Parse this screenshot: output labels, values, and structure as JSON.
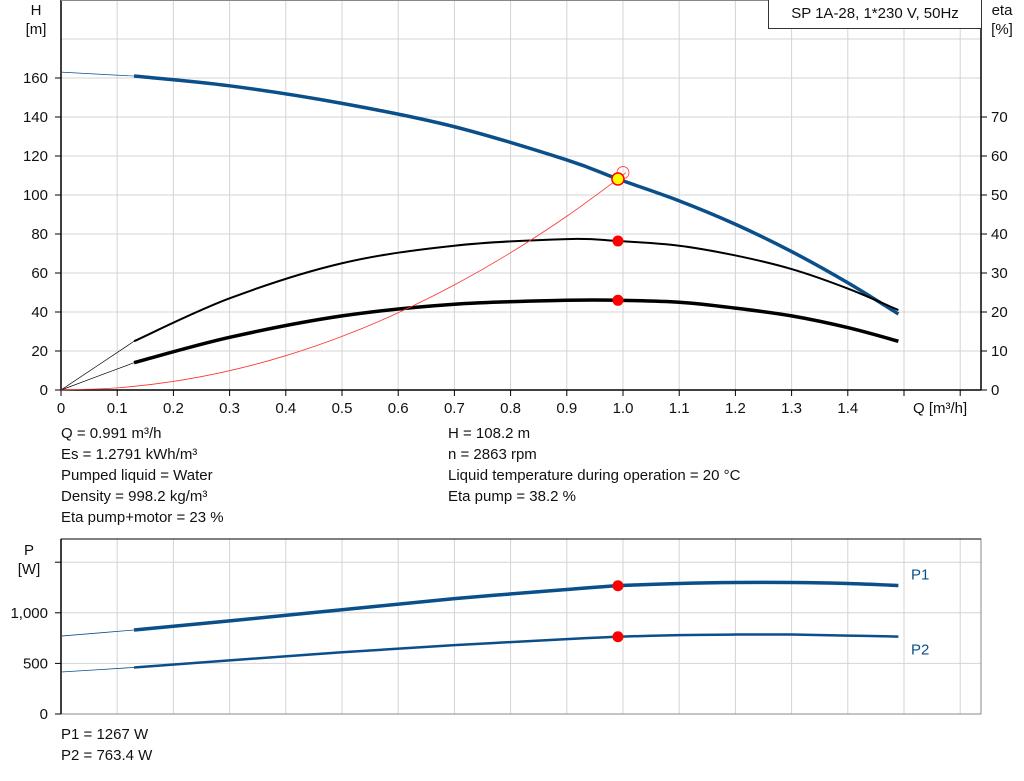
{
  "title": "SP 1A-28, 1*230 V, 50Hz",
  "colors": {
    "head": "#0b4f8a",
    "eta": "#000000",
    "system": "#ff3333",
    "power": "#0b4f8a",
    "duty_point": "#ff0000",
    "duty_fill_head": "#ffff00",
    "grid": "#d4d4d4"
  },
  "chart_data": [
    {
      "type": "line",
      "x_label": "Q [m³/h]",
      "y_left_label": [
        "H",
        "[m]"
      ],
      "y_right_label": [
        "eta",
        "[%]"
      ],
      "xlim": [
        0,
        1.65
      ],
      "x_ticks": [
        "0",
        "0.1",
        "0.2",
        "0.3",
        "0.4",
        "0.5",
        "0.6",
        "0.7",
        "0.8",
        "0.9",
        "1.0",
        "1.1",
        "1.2",
        "1.3",
        "1.4"
      ],
      "ylim_left": [
        0,
        200
      ],
      "y_left_ticks": [
        "0",
        "20",
        "40",
        "60",
        "80",
        "100",
        "120",
        "140",
        "160"
      ],
      "ylim_right": [
        0,
        100
      ],
      "y_right_ticks": [
        "0",
        "10",
        "20",
        "30",
        "40",
        "50",
        "60",
        "70"
      ],
      "grid": true,
      "series": [
        {
          "key": "head",
          "axis": "left",
          "x": [
            0,
            0.13,
            0.3,
            0.5,
            0.7,
            0.9,
            0.991,
            1.1,
            1.2,
            1.3,
            1.4,
            1.49
          ],
          "y": [
            163,
            161,
            156,
            147,
            135,
            118,
            108.2,
            97,
            85,
            71,
            55,
            39
          ]
        },
        {
          "key": "eta_pump",
          "axis": "right",
          "x": [
            0,
            0.13,
            0.3,
            0.5,
            0.7,
            0.9,
            0.991,
            1.1,
            1.2,
            1.3,
            1.4,
            1.49
          ],
          "y": [
            0,
            12.5,
            23.5,
            32.5,
            37,
            38.7,
            38.2,
            37,
            34.5,
            31,
            26,
            20.5
          ]
        },
        {
          "key": "eta_pump_motor",
          "axis": "right",
          "x": [
            0,
            0.13,
            0.3,
            0.5,
            0.7,
            0.9,
            0.991,
            1.1,
            1.2,
            1.3,
            1.4,
            1.49
          ],
          "y": [
            0,
            7,
            13.5,
            19,
            22,
            23,
            23,
            22.5,
            21,
            19,
            16,
            12.5
          ]
        },
        {
          "key": "system_curve",
          "axis": "left",
          "x": [
            0,
            0.1,
            0.2,
            0.3,
            0.4,
            0.5,
            0.6,
            0.7,
            0.8,
            0.9,
            0.991,
            1.005
          ],
          "y": [
            0,
            1.1,
            4.4,
            9.9,
            17.6,
            27.5,
            39.6,
            53.9,
            70.4,
            89.1,
            108.2,
            111.5
          ]
        }
      ],
      "duty_points": [
        {
          "series": "head",
          "x": 0.991,
          "y": 108.2
        },
        {
          "series": "eta_pump",
          "x": 0.991,
          "y": 38.2
        },
        {
          "series": "eta_pump_motor",
          "x": 0.991,
          "y": 23
        }
      ]
    },
    {
      "type": "line",
      "y_label": [
        "P",
        "[W]"
      ],
      "xlim": [
        0,
        1.65
      ],
      "ylim": [
        0,
        1720
      ],
      "y_ticks": [
        "0",
        "500",
        "1,000"
      ],
      "grid": true,
      "series": [
        {
          "name": "P1",
          "x": [
            0,
            0.13,
            0.3,
            0.5,
            0.7,
            0.9,
            0.991,
            1.1,
            1.2,
            1.3,
            1.4,
            1.49
          ],
          "y": [
            770,
            830,
            920,
            1030,
            1140,
            1230,
            1267,
            1290,
            1300,
            1300,
            1290,
            1270
          ]
        },
        {
          "name": "P2",
          "x": [
            0,
            0.13,
            0.3,
            0.5,
            0.7,
            0.9,
            0.991,
            1.1,
            1.2,
            1.3,
            1.4,
            1.49
          ],
          "y": [
            415,
            460,
            530,
            610,
            680,
            740,
            763.4,
            780,
            785,
            785,
            775,
            765
          ]
        }
      ],
      "duty_points": [
        {
          "series": "P1",
          "x": 0.991,
          "y": 1267
        },
        {
          "series": "P2",
          "x": 0.991,
          "y": 763.4
        }
      ]
    }
  ],
  "info_left": [
    "Q = 0.991 m³/h",
    "Es = 1.2791 kWh/m³",
    "Pumped liquid = Water",
    "Density = 998.2 kg/m³",
    "Eta pump+motor = 23 %"
  ],
  "info_right": [
    "H = 108.2 m",
    "n = 2863 rpm",
    "Liquid temperature during operation = 20 °C",
    "Eta pump = 38.2 %"
  ],
  "power_info": [
    "P1 = 1267 W",
    "P2 = 763.4 W"
  ]
}
